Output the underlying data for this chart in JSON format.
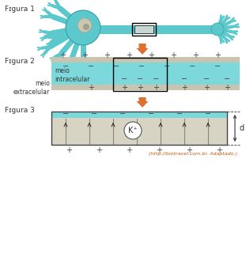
{
  "bg_color": "#ffffff",
  "neuron_color": "#5bc8cc",
  "neuron_outline": "#3a9ea0",
  "fig2_inner_color": "#7dd8dc",
  "fig2_membrane_color": "#c8c4b0",
  "fig3_top_color": "#7dd8dc",
  "fig3_body_color": "#d8d4c4",
  "arrow_color": "#e07030",
  "text_color": "#333333",
  "label_fig1": "Fɪgura 1",
  "label_fig2": "Fɪgura 2",
  "label_fig3": "Fɪgura 3",
  "meio_intracelular": "meio\nintracelular",
  "meio_extracelular": "meio\nextracelular",
  "kplus": "K⁺",
  "d_label": "d",
  "url_text": "(http://biotravel.com.br. Adaptado.)",
  "plus_color": "#444444",
  "minus_color": "#444444",
  "vline_color": "#888878",
  "dim_color": "#333333"
}
